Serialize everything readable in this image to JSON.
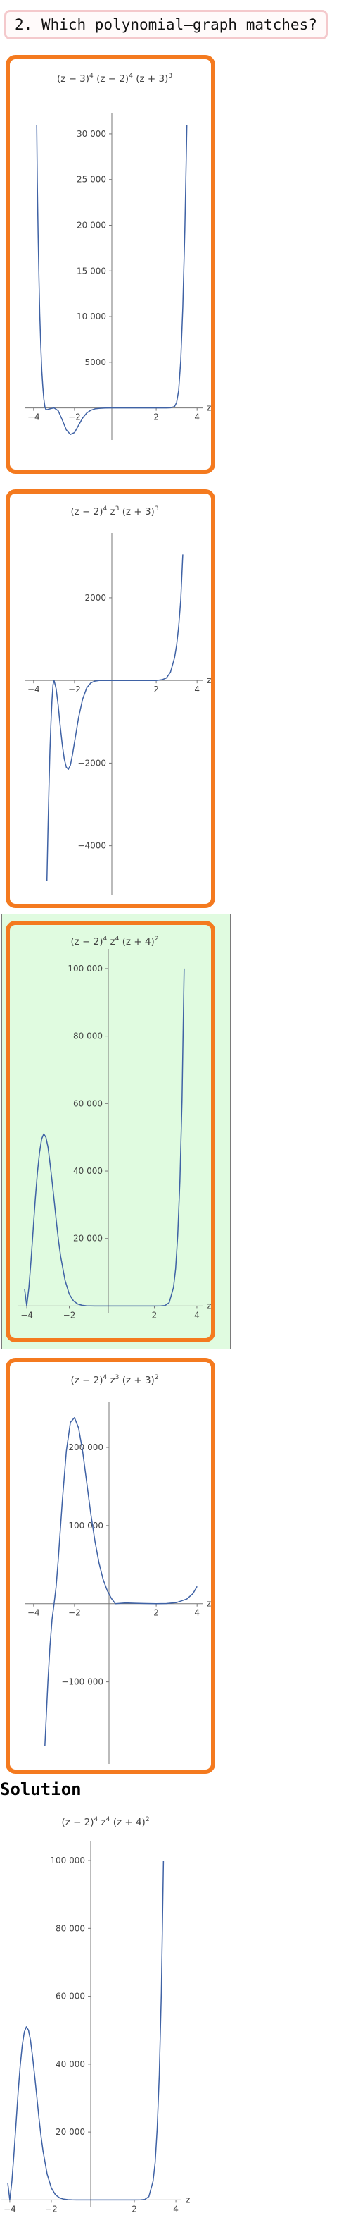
{
  "question": {
    "text": "2. Which polynomial‒graph matches?"
  },
  "options": [
    {
      "selected": false,
      "chart_data": {
        "type": "line",
        "title_parts": [
          "(z − 3)",
          "4",
          " (z − 2)",
          "4",
          " (z + 3)",
          "3"
        ],
        "xlabel": "z",
        "ylabel": "",
        "xlim": [
          -4.2,
          4.2
        ],
        "ylim": [
          -3500,
          32000
        ],
        "x_ticks": [
          -4,
          -2,
          2,
          4
        ],
        "x_tick_labels": [
          "−4",
          "−2",
          "2",
          "4"
        ],
        "y_ticks": [
          5000,
          10000,
          15000,
          20000,
          25000,
          30000
        ],
        "y_tick_labels": [
          "5000",
          "10 000",
          "15 000",
          "20 000",
          "25 000",
          "30 000"
        ],
        "series": [
          {
            "x": [
              -3.85,
              -3.82,
              -3.78,
              -3.74,
              -3.7,
              -3.65,
              -3.6,
              -3.55,
              -3.5,
              -3.45,
              -3.4,
              -3.3,
              -3.2,
              -3.1,
              -3.0,
              -2.8,
              -2.6,
              -2.4,
              -2.2,
              -2.0,
              -1.8,
              -1.6,
              -1.4,
              -1.2,
              -1.0,
              -0.8,
              -0.5,
              -0.2,
              0,
              0.5,
              1,
              1.5,
              2,
              2.5,
              2.7,
              2.9,
              3,
              3.1,
              3.2,
              3.3,
              3.4,
              3.45,
              3.5
            ],
            "y": [
              31000,
              25000,
              19000,
              14200,
              10300,
              6800,
              4100,
              2300,
              1000,
              150,
              -180,
              -160,
              -100,
              -40,
              0,
              -300,
              -1300,
              -2400,
              -2900,
              -2700,
              -1900,
              -1100,
              -550,
              -250,
              -100,
              -40,
              -10,
              0,
              0,
              0,
              0,
              0,
              0,
              0,
              20,
              150,
              600,
              1900,
              5200,
              11000,
              19500,
              25000,
              31000
            ]
          }
        ]
      }
    },
    {
      "selected": false,
      "chart_data": {
        "type": "line",
        "title_parts": [
          "(z − 2)",
          "4",
          " z",
          "3",
          " (z + 3)",
          "3"
        ],
        "xlabel": "z",
        "ylabel": "",
        "xlim": [
          -4.2,
          4.2
        ],
        "ylim": [
          -5200,
          3500
        ],
        "x_ticks": [
          -4,
          -2,
          2,
          4
        ],
        "x_tick_labels": [
          "−4",
          "−2",
          "2",
          "4"
        ],
        "y_ticks": [
          -4000,
          -2000,
          2000
        ],
        "y_tick_labels": [
          "−4000",
          "−2000",
          "2000"
        ],
        "series": [
          {
            "x": [
              -3.35,
              -3.3,
              -3.25,
              -3.2,
              -3.15,
              -3.1,
              -3.05,
              -3.0,
              -2.9,
              -2.8,
              -2.7,
              -2.6,
              -2.5,
              -2.4,
              -2.3,
              -2.2,
              -2.1,
              -2.0,
              -1.8,
              -1.6,
              -1.4,
              -1.2,
              -1.0,
              -0.8,
              -0.6,
              -0.4,
              -0.2,
              0,
              0.5,
              1,
              1.5,
              2,
              2.3,
              2.5,
              2.7,
              2.9,
              3.0,
              3.1,
              3.2,
              3.3
            ],
            "y": [
              -4850,
              -3700,
              -2600,
              -1700,
              -1000,
              -450,
              -100,
              0,
              -200,
              -600,
              -1100,
              -1550,
              -1900,
              -2100,
              -2150,
              -2050,
              -1800,
              -1500,
              -900,
              -450,
              -180,
              -60,
              -15,
              -3,
              0,
              0,
              0,
              0,
              0,
              0,
              0,
              0,
              20,
              60,
              200,
              550,
              850,
              1300,
              1950,
              3050
            ]
          }
        ]
      }
    },
    {
      "selected": true,
      "chart_data": {
        "type": "line",
        "title_parts": [
          "(z − 2)",
          "4",
          " z",
          "4",
          " (z + 4)",
          "2"
        ],
        "xlabel": "z",
        "ylabel": "",
        "xlim": [
          -4.2,
          4.2
        ],
        "ylim": [
          -2000,
          105000
        ],
        "x_ticks": [
          -4,
          -2,
          2,
          4
        ],
        "x_tick_labels": [
          "−4",
          "−2",
          "2",
          "4"
        ],
        "y_ticks": [
          20000,
          40000,
          60000,
          80000,
          100000
        ],
        "y_tick_labels": [
          "20 000",
          "40 000",
          "60 000",
          "80 000",
          "100 000"
        ],
        "series": [
          {
            "x": [
              -4.1,
              -4.0,
              -3.9,
              -3.8,
              -3.7,
              -3.6,
              -3.5,
              -3.4,
              -3.3,
              -3.2,
              -3.1,
              -3.0,
              -2.9,
              -2.8,
              -2.7,
              -2.6,
              -2.5,
              -2.4,
              -2.2,
              -2.0,
              -1.8,
              -1.6,
              -1.4,
              -1.2,
              -1.0,
              -0.8,
              -0.6,
              -0.4,
              -0.2,
              0,
              0.5,
              1,
              1.5,
              2,
              2.3,
              2.5,
              2.7,
              2.9,
              3.0,
              3.1,
              3.2,
              3.3,
              3.4
            ],
            "y": [
              5000,
              0,
              5500,
              13500,
              22500,
              31500,
              39500,
              45500,
              49500,
              51000,
              50000,
              47000,
              42000,
              36500,
              30500,
              24500,
              19000,
              14500,
              7600,
              3500,
              1500,
              600,
              220,
              70,
              20,
              4,
              0,
              0,
              0,
              0,
              0,
              0,
              0,
              0,
              30,
              150,
              1000,
              5500,
              11000,
              21000,
              37000,
              61000,
              100000
            ]
          }
        ]
      }
    },
    {
      "selected": false,
      "chart_data": {
        "type": "line",
        "title_parts": [
          "(z − 2)",
          "4",
          " z",
          "3",
          " (z + 3)",
          "2"
        ],
        "xlabel": "z",
        "ylabel": "",
        "xlim": [
          -4.2,
          4.2
        ],
        "ylim": [
          -205000,
          255000
        ],
        "x_ticks": [
          -4,
          -2,
          2,
          4
        ],
        "x_tick_labels": [
          "−4",
          "−2",
          "2",
          "4"
        ],
        "y_ticks": [
          -100000,
          100000,
          200000
        ],
        "y_tick_labels": [
          "−100 000",
          "100 000",
          "200 000"
        ],
        "series": [
          {
            "x": [
              -3.45,
              -3.4,
              -3.3,
              -3.2,
              -3.1,
              -3.0,
              -2.9,
              -2.8,
              -2.6,
              -2.4,
              -2.2,
              -2.0,
              -1.8,
              -1.6,
              -1.4,
              -1.2,
              -1.0,
              -0.8,
              -0.6,
              -0.4,
              -0.2,
              0,
              0.5,
              1,
              1.5,
              2,
              2.5,
              3,
              3.5,
              3.8,
              4.0
            ],
            "y": [
              -182000,
              -155000,
              -100000,
              -55000,
              -20000,
              0,
              22000,
              55000,
              130000,
              195000,
              232000,
              238000,
              225000,
              195000,
              155000,
              115000,
              80000,
              52000,
              31000,
              17000,
              7000,
              0,
              1000,
              600,
              200,
              0,
              200,
              1500,
              6000,
              13000,
              22000
            ]
          }
        ]
      }
    }
  ],
  "solution": {
    "heading": "Solution",
    "chart_data": {
      "type": "line",
      "title_parts": [
        "(z − 2)",
        "4",
        " z",
        "4",
        " (z + 4)",
        "2"
      ],
      "xlabel": "z",
      "ylabel": "",
      "xlim": [
        -4.2,
        4.2
      ],
      "ylim": [
        -2000,
        105000
      ],
      "x_ticks": [
        -4,
        -2,
        2,
        4
      ],
      "x_tick_labels": [
        "−4",
        "−2",
        "2",
        "4"
      ],
      "y_ticks": [
        20000,
        40000,
        60000,
        80000,
        100000
      ],
      "y_tick_labels": [
        "20 000",
        "40 000",
        "60 000",
        "80 000",
        "100 000"
      ],
      "series": [
        {
          "x": [
            -4.1,
            -4.0,
            -3.9,
            -3.8,
            -3.7,
            -3.6,
            -3.5,
            -3.4,
            -3.3,
            -3.2,
            -3.1,
            -3.0,
            -2.9,
            -2.8,
            -2.7,
            -2.6,
            -2.5,
            -2.4,
            -2.2,
            -2.0,
            -1.8,
            -1.6,
            -1.4,
            -1.2,
            -1.0,
            -0.8,
            -0.6,
            -0.4,
            -0.2,
            0,
            0.5,
            1,
            1.5,
            2,
            2.3,
            2.5,
            2.7,
            2.9,
            3.0,
            3.1,
            3.2,
            3.3,
            3.4
          ],
          "y": [
            5000,
            0,
            5500,
            13500,
            22500,
            31500,
            39500,
            45500,
            49500,
            51000,
            50000,
            47000,
            42000,
            36500,
            30500,
            24500,
            19000,
            14500,
            7600,
            3500,
            1500,
            600,
            220,
            70,
            20,
            4,
            0,
            0,
            0,
            0,
            0,
            0,
            0,
            0,
            30,
            150,
            1000,
            5500,
            11000,
            21000,
            37000,
            61000,
            100000
          ]
        }
      ]
    }
  }
}
